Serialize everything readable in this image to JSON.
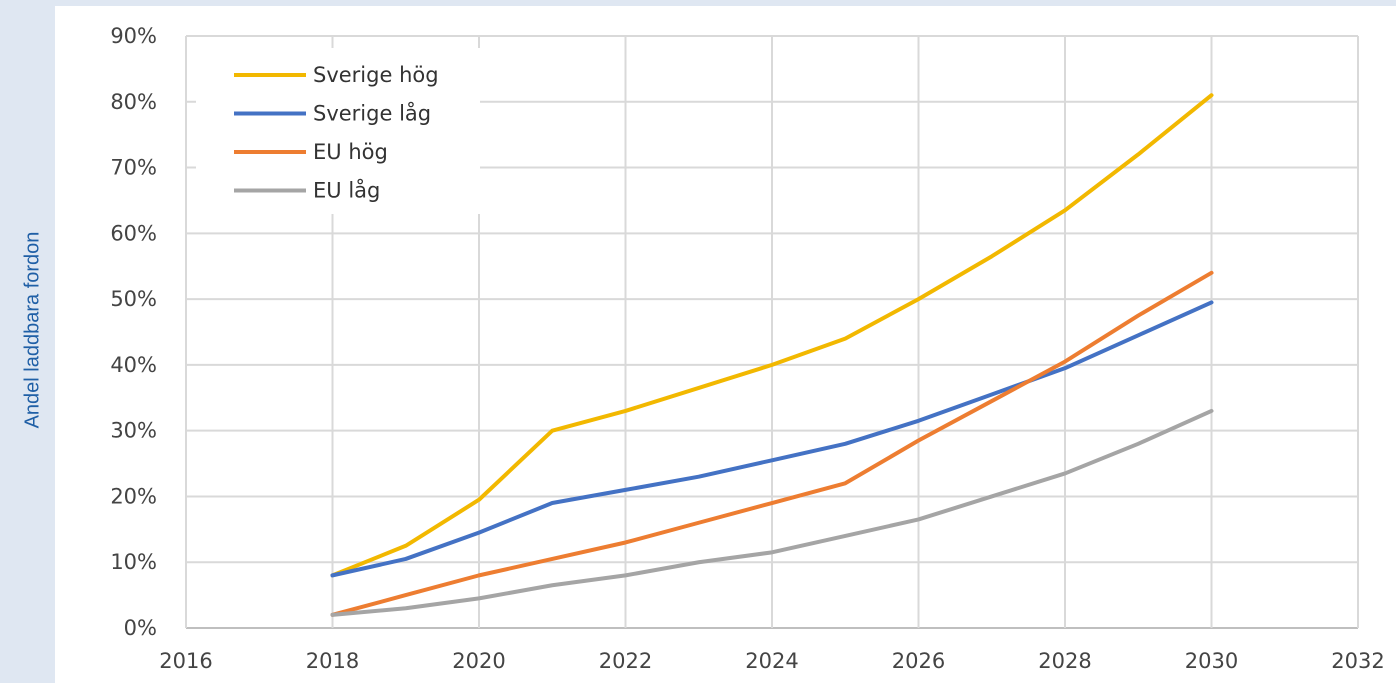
{
  "chart_data": {
    "type": "line",
    "title": "",
    "ylabel": "Andel laddbara fordon",
    "xlabel": "",
    "xlim": [
      2016,
      2032
    ],
    "ylim": [
      0,
      90
    ],
    "xticks": [
      "2016",
      "2018",
      "2020",
      "2022",
      "2024",
      "2026",
      "2028",
      "2030",
      "2032"
    ],
    "yticks": [
      "0%",
      "10%",
      "20%",
      "30%",
      "40%",
      "50%",
      "60%",
      "70%",
      "80%",
      "90%"
    ],
    "grid": true,
    "legend_position": "top-left",
    "series": [
      {
        "name": "Sverige hög",
        "color": "#f2b800",
        "x": [
          2018,
          2019,
          2020,
          2021,
          2022,
          2023,
          2024,
          2025,
          2026,
          2027,
          2028,
          2029,
          2030
        ],
        "y": [
          8,
          12.5,
          19.5,
          30,
          33,
          36.5,
          40,
          44,
          50,
          56.5,
          63.5,
          72,
          81
        ]
      },
      {
        "name": "Sverige låg",
        "color": "#4472c4",
        "x": [
          2018,
          2019,
          2020,
          2021,
          2022,
          2023,
          2024,
          2025,
          2026,
          2027,
          2028,
          2029,
          2030
        ],
        "y": [
          8,
          10.5,
          14.5,
          19,
          21,
          23,
          25.5,
          28,
          31.5,
          35.5,
          39.5,
          44.5,
          49.5
        ]
      },
      {
        "name": "EU hög",
        "color": "#ed7d31",
        "x": [
          2018,
          2019,
          2020,
          2021,
          2022,
          2023,
          2024,
          2025,
          2026,
          2027,
          2028,
          2029,
          2030
        ],
        "y": [
          2,
          5,
          8,
          10.5,
          13,
          16,
          19,
          22,
          28.5,
          34.5,
          40.5,
          47.5,
          54
        ]
      },
      {
        "name": "EU låg",
        "color": "#a5a5a5",
        "x": [
          2018,
          2019,
          2020,
          2021,
          2022,
          2023,
          2024,
          2025,
          2026,
          2027,
          2028,
          2029,
          2030
        ],
        "y": [
          2,
          3,
          4.5,
          6.5,
          8,
          10,
          11.5,
          14,
          16.5,
          20,
          23.5,
          28,
          33
        ]
      }
    ]
  }
}
